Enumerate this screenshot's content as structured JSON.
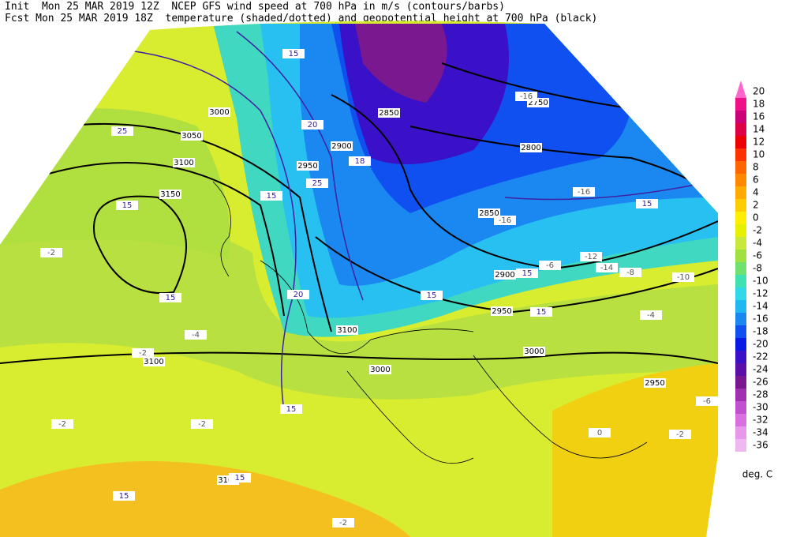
{
  "header": {
    "line1": "Init  Mon 25 MAR 2019 12Z  NCEP GFS wind speed at 700 hPa in m/s (contours/barbs)",
    "line2": "Fcst Mon 25 MAR 2019 18Z  temperature (shaded/dotted) and geopotential height at 700 hPa (black)"
  },
  "colorbar": {
    "levels": [
      20,
      18,
      16,
      14,
      12,
      10,
      8,
      6,
      4,
      2,
      0,
      -2,
      -4,
      -6,
      -8,
      -10,
      -12,
      -14,
      -16,
      -18,
      -20,
      -22,
      -24,
      -26,
      -28,
      -30,
      -32,
      -34,
      -36
    ],
    "colors": [
      "#ff66cc",
      "#ee1188",
      "#cc0077",
      "#dd0044",
      "#ee0000",
      "#ff3300",
      "#ff6600",
      "#ff8800",
      "#ffaa00",
      "#ffcc00",
      "#ffee00",
      "#e6f000",
      "#c8e83c",
      "#a0e040",
      "#70e070",
      "#40e0b0",
      "#30d8e8",
      "#20b8f0",
      "#1a88f0",
      "#1050f0",
      "#0a1ae6",
      "#3a10c8",
      "#5a10a8",
      "#7a1890",
      "#a030b0",
      "#c050d0",
      "#d870e0",
      "#e898ec",
      "#f0b8f0"
    ],
    "unit": "deg. C"
  },
  "map": {
    "height_labels": [
      2850,
      2900,
      3000,
      3050,
      3100,
      3150,
      2800,
      2750,
      2850,
      2900,
      2950,
      3100,
      3000,
      3000,
      2950,
      3100,
      3100,
      2950
    ],
    "wind_labels": [
      15,
      25,
      20,
      25,
      15,
      15,
      15,
      20,
      18,
      15,
      15,
      15,
      15,
      15,
      15,
      15
    ],
    "temperature_labels": [
      -2,
      -16,
      -16,
      -16,
      -14,
      -12,
      -10,
      -8,
      -6,
      -4,
      -2,
      -2,
      -2,
      -4,
      -6,
      -2,
      0,
      -2
    ]
  }
}
